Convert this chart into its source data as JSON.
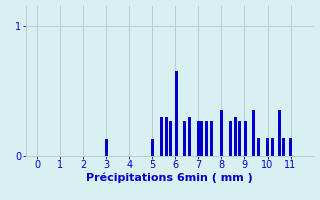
{
  "xlabel": "Précipitations 6min ( mm )",
  "bar_color": "#0000cc",
  "background_color": "#d8f0f0",
  "grid_color": "#b8cccc",
  "text_color": "#0000cc",
  "xlim": [
    -0.5,
    12.0
  ],
  "ylim": [
    0,
    1.15
  ],
  "yticks": [
    0,
    1
  ],
  "xticks": [
    0,
    1,
    2,
    3,
    4,
    5,
    6,
    7,
    8,
    9,
    10,
    11
  ],
  "bars_x": [
    3.0,
    5.0,
    5.4,
    5.6,
    5.8,
    6.05,
    6.4,
    6.6,
    7.0,
    7.15,
    7.35,
    7.55,
    8.0,
    8.4,
    8.6,
    8.8,
    9.05,
    9.4,
    9.6,
    10.0,
    10.2,
    10.5,
    10.7,
    11.0
  ],
  "bars_h": [
    0.13,
    0.13,
    0.3,
    0.3,
    0.27,
    0.65,
    0.27,
    0.3,
    0.27,
    0.27,
    0.27,
    0.27,
    0.35,
    0.27,
    0.3,
    0.27,
    0.27,
    0.35,
    0.14,
    0.14,
    0.14,
    0.35,
    0.14,
    0.14
  ],
  "bar_width": 0.13,
  "xlabel_fontsize": 8,
  "tick_fontsize": 7
}
